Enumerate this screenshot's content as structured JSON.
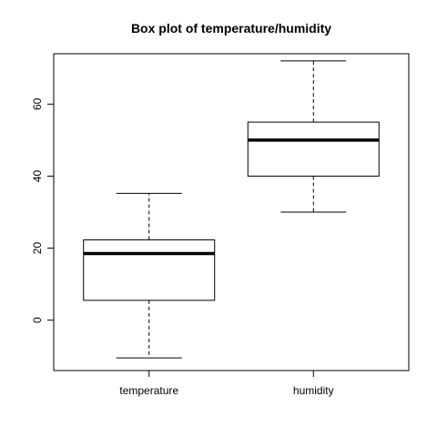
{
  "chart_data": {
    "type": "boxplot",
    "title": "Box plot of temperature/humidity",
    "xlabel": "",
    "ylabel": "",
    "categories": [
      "temperature",
      "humidity"
    ],
    "boxes": [
      {
        "category": "temperature",
        "min": -10.5,
        "q1": 5.5,
        "median": 18.5,
        "q3": 22.3,
        "max": 35.2
      },
      {
        "category": "humidity",
        "min": 30,
        "q1": 40,
        "median": 50,
        "q3": 55,
        "max": 72
      }
    ],
    "ylim": [
      -14,
      74
    ],
    "yticks": [
      0,
      20,
      40,
      60
    ],
    "ytick_labels": [
      "0",
      "20",
      "40",
      "60"
    ],
    "grid": false,
    "colors": {
      "line": "#000000",
      "box_fill": "#ffffff",
      "background": "#ffffff"
    }
  }
}
